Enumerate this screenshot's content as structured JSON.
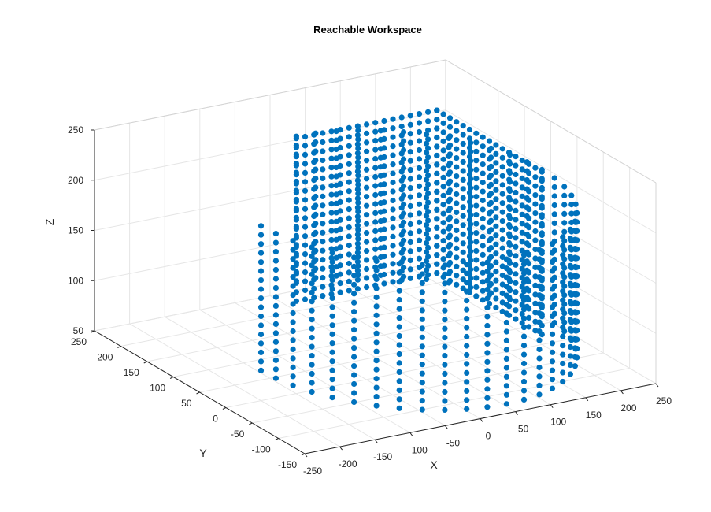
{
  "chart_data": {
    "type": "scatter",
    "dimensions": 3,
    "title": "Reachable Workspace",
    "xlabel": "X",
    "ylabel": "Y",
    "zlabel": "Z",
    "xlim": [
      -250,
      250
    ],
    "ylim": [
      -150,
      250
    ],
    "zlim": [
      50,
      250
    ],
    "xticks": [
      "-250",
      "-200",
      "-150",
      "-100",
      "-50",
      "0",
      "50",
      "100",
      "150",
      "200",
      "250"
    ],
    "yticks": [
      "-150",
      "-100",
      "-50",
      "0",
      "50",
      "100",
      "150",
      "200",
      "250"
    ],
    "zticks": [
      "50",
      "100",
      "150",
      "200",
      "250"
    ],
    "grid": true,
    "marker_color": "#0072BD",
    "marker": "filled-circle",
    "series": [
      {
        "shape": "cylindrical-surface",
        "radius": 200,
        "z_range": [
          80,
          230
        ],
        "theta_range_deg": [
          -180,
          90
        ],
        "note": "points on a cylinder r=200 for angles from -180 to 90 deg, z 80-230"
      },
      {
        "shape": "planar-surface",
        "x_range": [
          0,
          200
        ],
        "y": 200,
        "z_range": [
          60,
          230
        ]
      },
      {
        "shape": "planar-surface",
        "x": 200,
        "y_range": [
          0,
          200
        ],
        "z_range": [
          60,
          230
        ]
      }
    ]
  }
}
